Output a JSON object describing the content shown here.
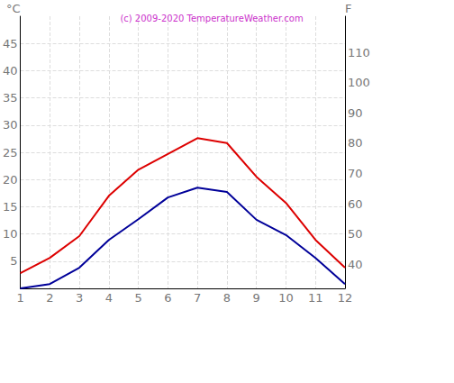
{
  "chart_data": {
    "type": "line",
    "title": "(c) 2009-2020 TemperatureWeather.com",
    "categories": [
      "1",
      "2",
      "3",
      "4",
      "5",
      "6",
      "7",
      "8",
      "9",
      "10",
      "11",
      "12"
    ],
    "series": [
      {
        "color": "#dd0000",
        "values": [
          2.8,
          5.6,
          9.6,
          17,
          21.8,
          24.7,
          27.6,
          26.7,
          20.5,
          15.7,
          8.9,
          3.8
        ]
      },
      {
        "color": "#000099",
        "values": [
          0,
          0.8,
          3.8,
          8.9,
          12.7,
          16.7,
          18.5,
          17.7,
          12.6,
          9.8,
          5.6,
          0.8
        ]
      }
    ],
    "ylabel": "°C",
    "y2label": "F",
    "ylim": [
      0,
      50
    ],
    "yticks": [
      5,
      10,
      15,
      20,
      25,
      30,
      35,
      40,
      45
    ],
    "y2lim": [
      32,
      122
    ],
    "y2ticks": [
      40,
      50,
      60,
      70,
      80,
      90,
      100,
      110
    ],
    "grid": true
  }
}
